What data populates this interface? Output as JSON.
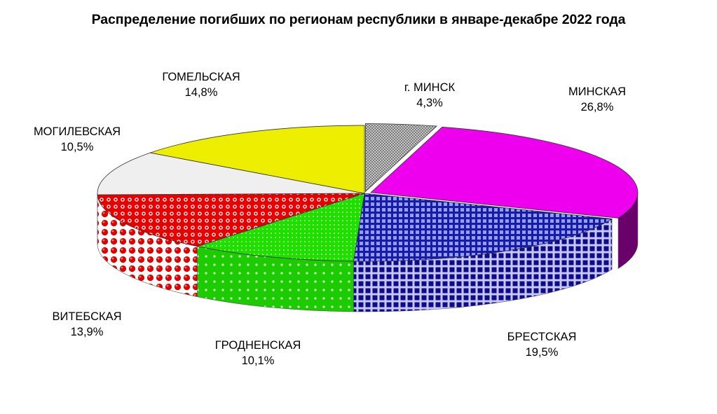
{
  "title": "Распределение погибших по регионам республики в январе-декабре 2022 года",
  "chart_data": {
    "type": "pie",
    "title": "Распределение погибших по регионам республики в январе-декабре 2022 года",
    "three_d": true,
    "slices": [
      {
        "label": "г. МИНСК",
        "value": 4.3,
        "value_text": "4,3%",
        "color": "#a9a9a9"
      },
      {
        "label": "МИНСКАЯ",
        "value": 26.8,
        "value_text": "26,8%",
        "color": "#ee00ee"
      },
      {
        "label": "БРЕСТСКАЯ",
        "value": 19.5,
        "value_text": "19,5%",
        "color": "#1a1aa6"
      },
      {
        "label": "ГРОДНЕНСКАЯ",
        "value": 10.1,
        "value_text": "10,1%",
        "color": "#22dd00"
      },
      {
        "label": "ВИТЕБСКАЯ",
        "value": 13.9,
        "value_text": "13,9%",
        "color": "#e60000"
      },
      {
        "label": "МОГИЛЕВСКАЯ",
        "value": 10.5,
        "value_text": "10,5%",
        "color": "#f0f0f0"
      },
      {
        "label": "ГОМЕЛЬСКАЯ",
        "value": 14.8,
        "value_text": "14,8%",
        "color": "#eeee00"
      }
    ]
  }
}
